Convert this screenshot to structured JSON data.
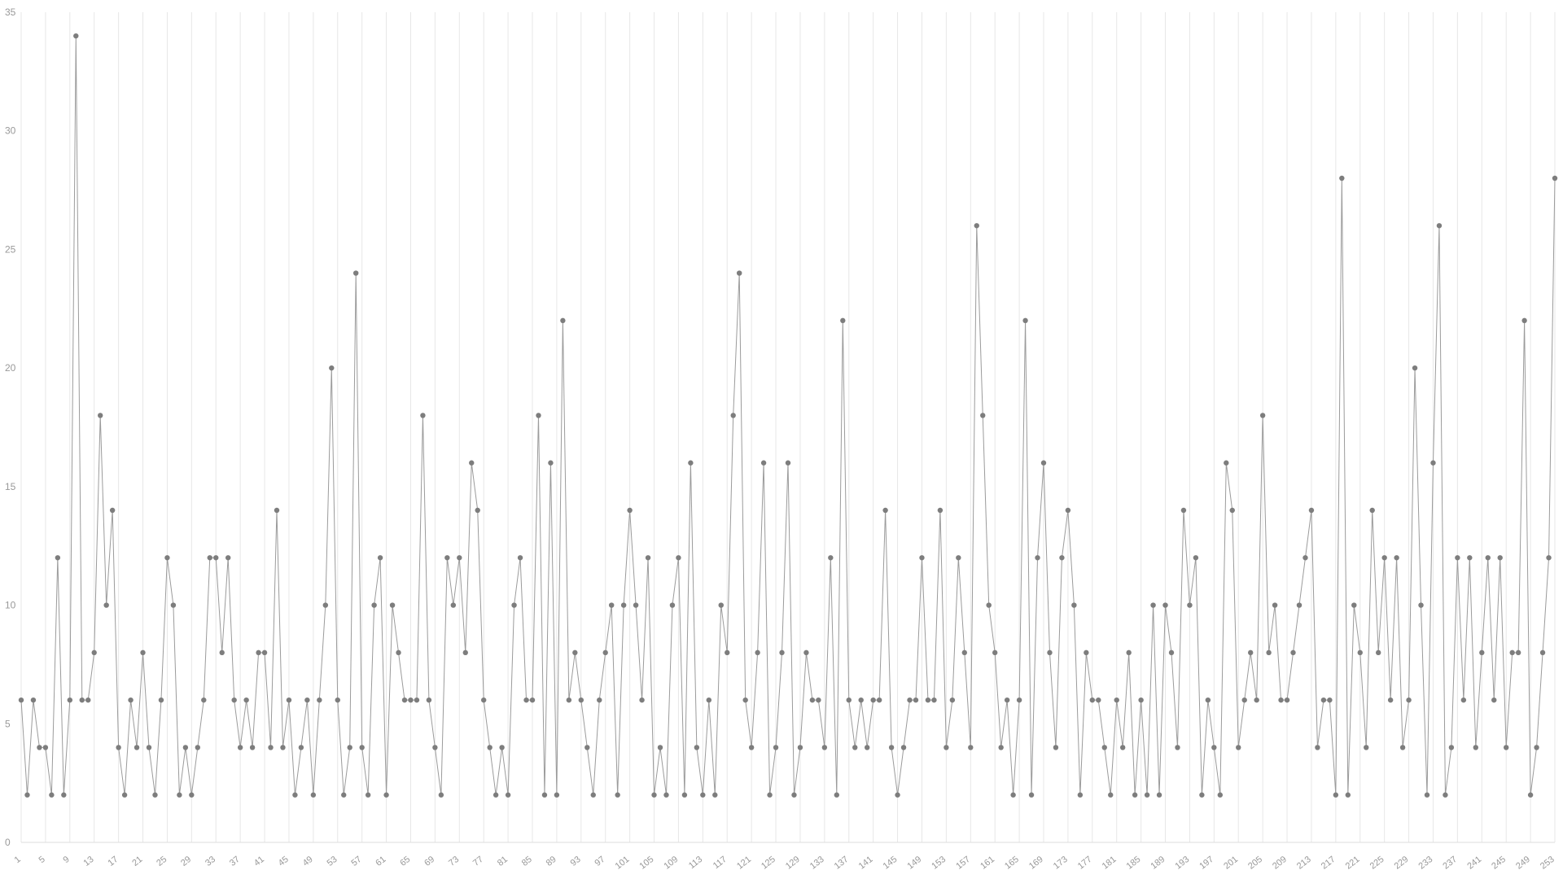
{
  "colors": {
    "background": "#ffffff",
    "line": "#9b9b9b",
    "marker": "#7d7d7d",
    "grid": "#e7e7e7",
    "axis_label": "#999999",
    "baseline": "#dddddd"
  },
  "chart_data": {
    "type": "line",
    "title": "",
    "xlabel": "",
    "ylabel": "",
    "ylim": [
      0,
      35
    ],
    "grid": "vertical-only",
    "legend": "none",
    "marker": "circle",
    "x_start": 1,
    "x_step": 1,
    "x_tick_step": 4,
    "x_tick_labels": [
      "1",
      "5",
      "9",
      "13",
      "17",
      "21",
      "25",
      "29",
      "33",
      "37",
      "41",
      "45",
      "49",
      "53",
      "57",
      "61",
      "65",
      "69",
      "73",
      "77",
      "81",
      "85",
      "89",
      "93",
      "97",
      "101",
      "105",
      "109",
      "113",
      "117",
      "121",
      "125",
      "129",
      "133",
      "137",
      "141",
      "145",
      "149",
      "153",
      "157",
      "161",
      "165",
      "169",
      "173",
      "177",
      "181",
      "185",
      "189",
      "193",
      "197",
      "201",
      "205",
      "209",
      "213",
      "217",
      "221",
      "225",
      "229",
      "233",
      "237",
      "241",
      "245",
      "249",
      "253"
    ],
    "y_ticks": [
      0,
      5,
      10,
      15,
      20,
      25,
      30,
      35
    ],
    "values": [
      6,
      2,
      6,
      4,
      4,
      2,
      12,
      2,
      6,
      34,
      6,
      6,
      8,
      18,
      10,
      14,
      4,
      2,
      6,
      4,
      8,
      4,
      2,
      6,
      12,
      10,
      2,
      4,
      2,
      4,
      6,
      12,
      12,
      8,
      12,
      6,
      4,
      6,
      4,
      8,
      8,
      4,
      14,
      4,
      6,
      2,
      4,
      6,
      2,
      6,
      10,
      20,
      6,
      2,
      4,
      24,
      4,
      2,
      10,
      12,
      2,
      10,
      8,
      6,
      6,
      6,
      18,
      6,
      4,
      2,
      12,
      10,
      12,
      8,
      16,
      14,
      6,
      4,
      2,
      4,
      2,
      10,
      12,
      6,
      6,
      18,
      2,
      16,
      2,
      22,
      6,
      8,
      6,
      4,
      2,
      6,
      8,
      10,
      2,
      10,
      14,
      10,
      6,
      12,
      2,
      4,
      2,
      10,
      12,
      2,
      16,
      4,
      2,
      6,
      2,
      10,
      8,
      18,
      24,
      6,
      4,
      8,
      16,
      2,
      4,
      8,
      16,
      2,
      4,
      8,
      6,
      6,
      4,
      12,
      2,
      22,
      6,
      4,
      6,
      4,
      6,
      6,
      14,
      4,
      2,
      4,
      6,
      6,
      12,
      6,
      6,
      14,
      4,
      6,
      12,
      8,
      4,
      26,
      18,
      10,
      8,
      4,
      6,
      2,
      6,
      22,
      2,
      12,
      16,
      8,
      4,
      12,
      14,
      10,
      2,
      8,
      6,
      6,
      4,
      2,
      6,
      4,
      8,
      2,
      6,
      2,
      10,
      2,
      10,
      8,
      4,
      14,
      10,
      12,
      2,
      6,
      4,
      2,
      16,
      14,
      4,
      6,
      8,
      6,
      18,
      8,
      10,
      6,
      6,
      8,
      10,
      12,
      14,
      4,
      6,
      6,
      2,
      28,
      2,
      10,
      8,
      4,
      14,
      8,
      12,
      6,
      12,
      4,
      6,
      20,
      10,
      2,
      16,
      26,
      2,
      4,
      12,
      6,
      12,
      4,
      8,
      12,
      6,
      12,
      4,
      8,
      8,
      22,
      2,
      4,
      8,
      12,
      28
    ]
  }
}
